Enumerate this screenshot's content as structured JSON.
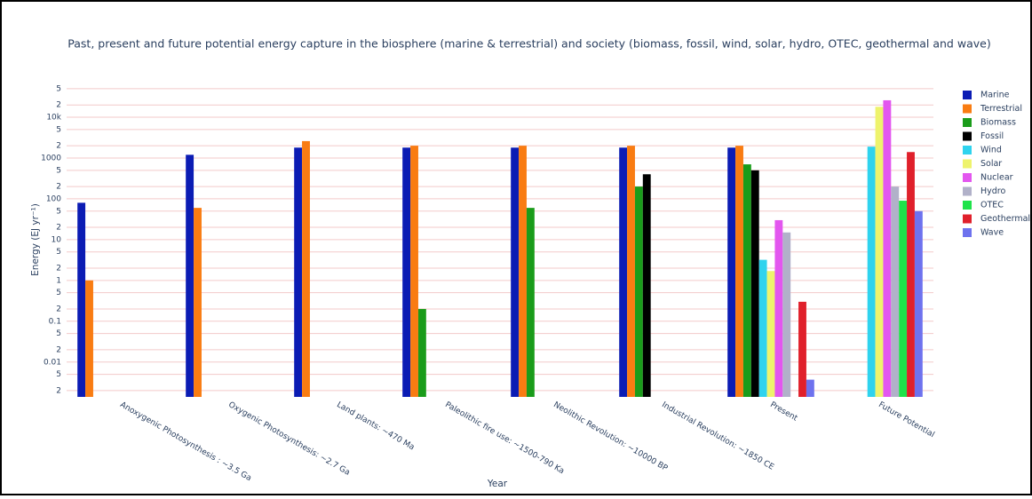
{
  "chart_data": {
    "type": "bar",
    "title": "Past, present and future potential energy capture in the biosphere (marine & terrestrial) and society (biomass, fossil, wind, solar, hydro, OTEC, geothermal and wave)",
    "x_label": "Year",
    "y_label": "Energy (EJ yr⁻¹)",
    "yscale": "log",
    "grid": true,
    "legend": "right",
    "categories": [
      "Anoxygenic Photosynthesis : ~3.5 Ga",
      "Oxygenic Photosynthesis: ~2.7 Ga",
      "Land plants: ~470 Ma",
      "Paleolithic fire use: ~1500-790 Ka",
      "Neolithic Revolution: ~10000 BP",
      "Industrial Revolution: ~1850 CE",
      "Present",
      "Future Potential"
    ],
    "series": [
      {
        "name": "Marine",
        "color": "#0b1cb4",
        "values": [
          80,
          1200,
          1800,
          1800,
          1800,
          1800,
          1800,
          null
        ]
      },
      {
        "name": "Terrestrial",
        "color": "#f97c12",
        "values": [
          1,
          60,
          2600,
          2000,
          2000,
          2000,
          2000,
          null
        ]
      },
      {
        "name": "Biomass",
        "color": "#1a9c1a",
        "values": [
          null,
          null,
          null,
          0.2,
          60,
          200,
          700,
          null
        ]
      },
      {
        "name": "Fossil",
        "color": "#000000",
        "values": [
          null,
          null,
          null,
          null,
          null,
          400,
          500,
          null
        ]
      },
      {
        "name": "Wind",
        "color": "#2fd3ee",
        "values": [
          null,
          null,
          null,
          null,
          null,
          null,
          3.2,
          1900
        ]
      },
      {
        "name": "Solar",
        "color": "#eef36c",
        "values": [
          null,
          null,
          null,
          null,
          null,
          null,
          1.7,
          18000
        ]
      },
      {
        "name": "Nuclear",
        "color": "#e356ef",
        "values": [
          null,
          null,
          null,
          null,
          null,
          null,
          30,
          26000
        ]
      },
      {
        "name": "Hydro",
        "color": "#b1b1c9",
        "values": [
          null,
          null,
          null,
          null,
          null,
          null,
          15,
          200
        ]
      },
      {
        "name": "OTEC",
        "color": "#1fe34a",
        "values": [
          null,
          null,
          null,
          null,
          null,
          null,
          null,
          90
        ]
      },
      {
        "name": "Geothermal",
        "color": "#e0202b",
        "values": [
          null,
          null,
          null,
          null,
          null,
          null,
          0.3,
          1400
        ]
      },
      {
        "name": "Wave",
        "color": "#6e72ee",
        "values": [
          null,
          null,
          null,
          null,
          null,
          null,
          0.0037,
          50
        ]
      }
    ],
    "ylim": [
      0.0014,
      55000
    ],
    "yticks": [
      {
        "value": 0.002,
        "label": "2"
      },
      {
        "value": 0.005,
        "label": "5"
      },
      0.01,
      {
        "value": 0.02,
        "label": "2"
      },
      {
        "value": 0.05,
        "label": "5"
      },
      0.1,
      {
        "value": 0.2,
        "label": "2"
      },
      {
        "value": 0.5,
        "label": "5"
      },
      1,
      2,
      5,
      10,
      {
        "value": 20,
        "label": "2"
      },
      {
        "value": 50,
        "label": "5"
      },
      100,
      {
        "value": 200,
        "label": "2"
      },
      {
        "value": 500,
        "label": "5"
      },
      1000,
      {
        "value": 2000,
        "label": "2"
      },
      {
        "value": 5000,
        "label": "5"
      },
      {
        "value": 10000,
        "label": "10k"
      },
      {
        "value": 20000,
        "label": "2"
      },
      {
        "value": 50000,
        "label": "5"
      }
    ]
  }
}
